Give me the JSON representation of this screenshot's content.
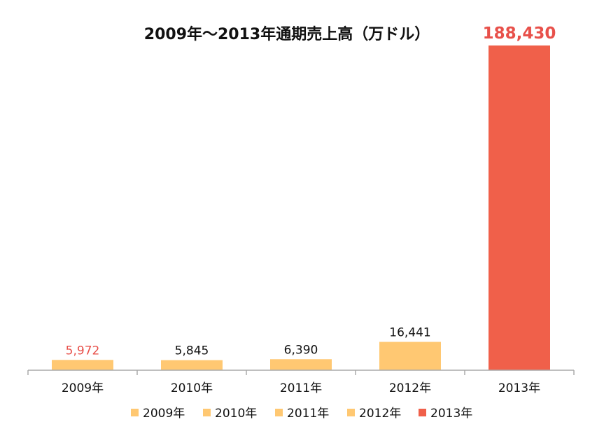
{
  "chart_data": {
    "type": "bar",
    "title": "2009年～2013年通期売上高（万ドル）",
    "xlabel": "",
    "ylabel": "",
    "categories": [
      "2009年",
      "2010年",
      "2011年",
      "2012年",
      "2013年"
    ],
    "values": [
      5972,
      5845,
      6390,
      16441,
      188430
    ],
    "value_labels": [
      "5,972",
      "5,845",
      "6,390",
      "16,441",
      "188,430"
    ],
    "ylim": [
      0,
      195000
    ],
    "grid": false,
    "legend": {
      "placement": "bottom",
      "entries": [
        "2009年",
        "2010年",
        "2011年",
        "2012年",
        "2013年"
      ]
    },
    "colors": {
      "bars": [
        "#FFC872",
        "#FFC872",
        "#FFC872",
        "#FFC872",
        "#F0604A"
      ],
      "value_labels": [
        "#E8504A",
        "#111111",
        "#111111",
        "#111111",
        "#E8504A"
      ],
      "axis": "#AAAAAA"
    }
  }
}
